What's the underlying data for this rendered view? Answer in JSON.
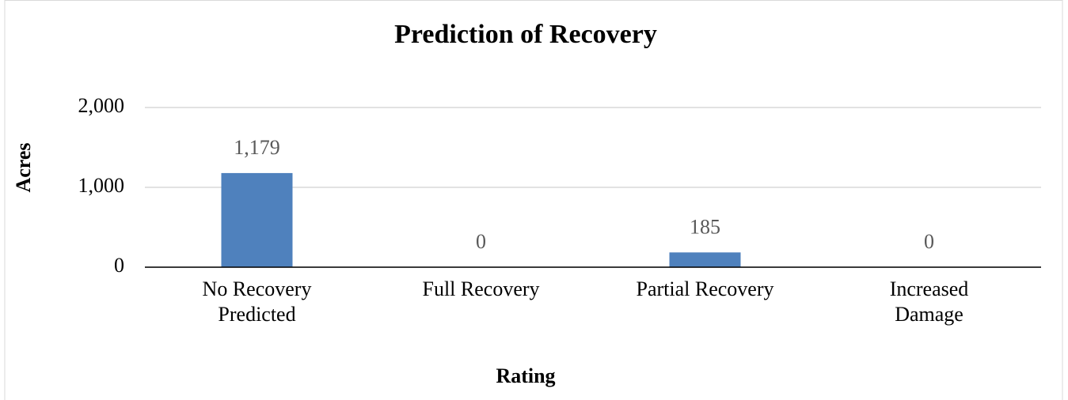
{
  "chart_data": {
    "type": "bar",
    "title": "Prediction of Recovery",
    "x_label": "Rating",
    "y_label": "Acres",
    "categories": [
      "No Recovery Predicted",
      "Full Recovery",
      "Partial Recovery",
      "Increased Damage"
    ],
    "values": [
      1179,
      0,
      185,
      0
    ],
    "value_labels": [
      "1,179",
      "0",
      "185",
      "0"
    ],
    "color": "#4f81bd",
    "ylim": [
      0,
      2000
    ],
    "yticks": [
      0,
      {
        "value": 1000,
        "label": "1,000"
      },
      {
        "value": 2000,
        "label": "2,000"
      }
    ],
    "grid": true
  }
}
